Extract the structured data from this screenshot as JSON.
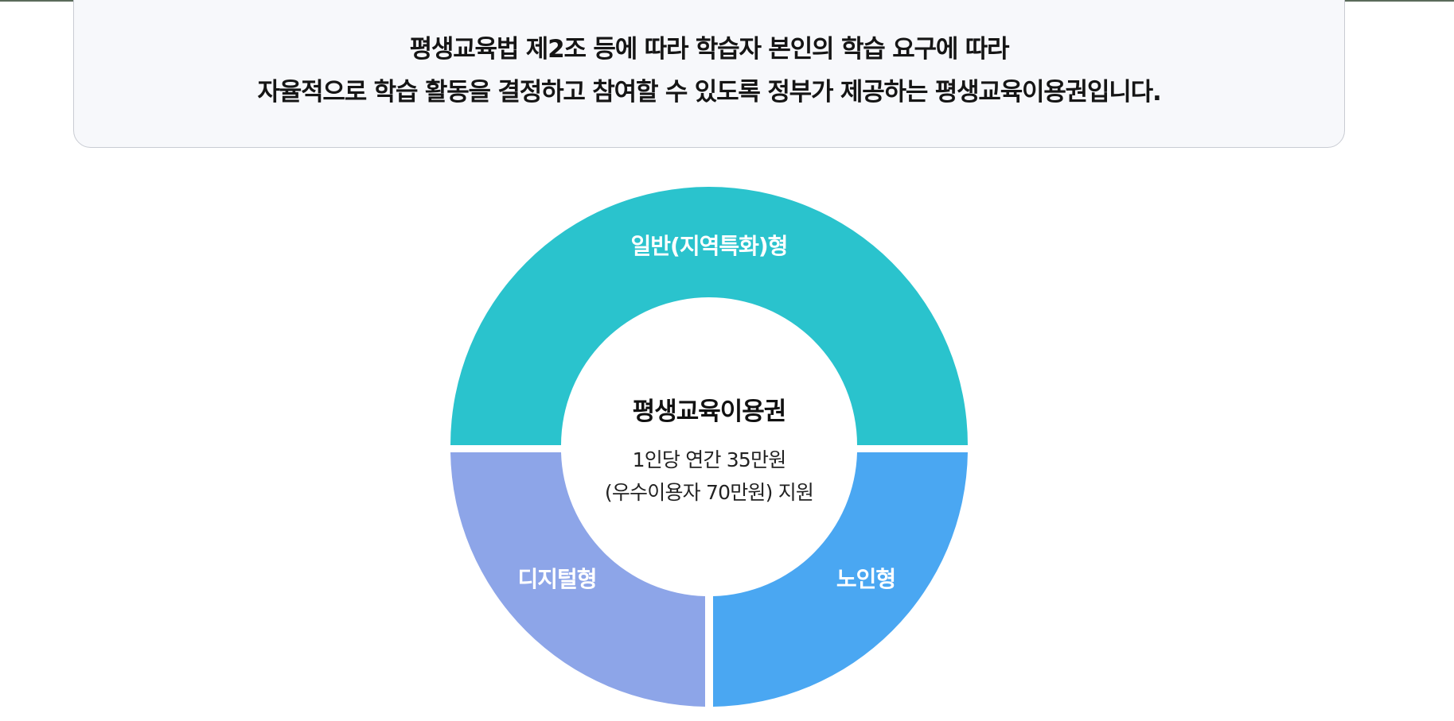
{
  "intro": {
    "line1": "평생교육법 제2조 등에 따라 학습자 본인의 학습 요구에 따라",
    "line2": "자율적으로 학습 활동을 결정하고 참여할 수 있도록 정부가 제공하는 평생교육이용권입니다."
  },
  "diagram": {
    "segments": [
      {
        "label": "일반(지역특화)형",
        "color": "#2ac3cd"
      },
      {
        "label": "디지털형",
        "color": "#8da5e8"
      },
      {
        "label": "노인형",
        "color": "#4aa7f2"
      }
    ],
    "center": {
      "title": "평생교육이용권",
      "line1": "1인당 연간  35만원",
      "line2": "(우수이용자 70만원) 지원"
    }
  }
}
